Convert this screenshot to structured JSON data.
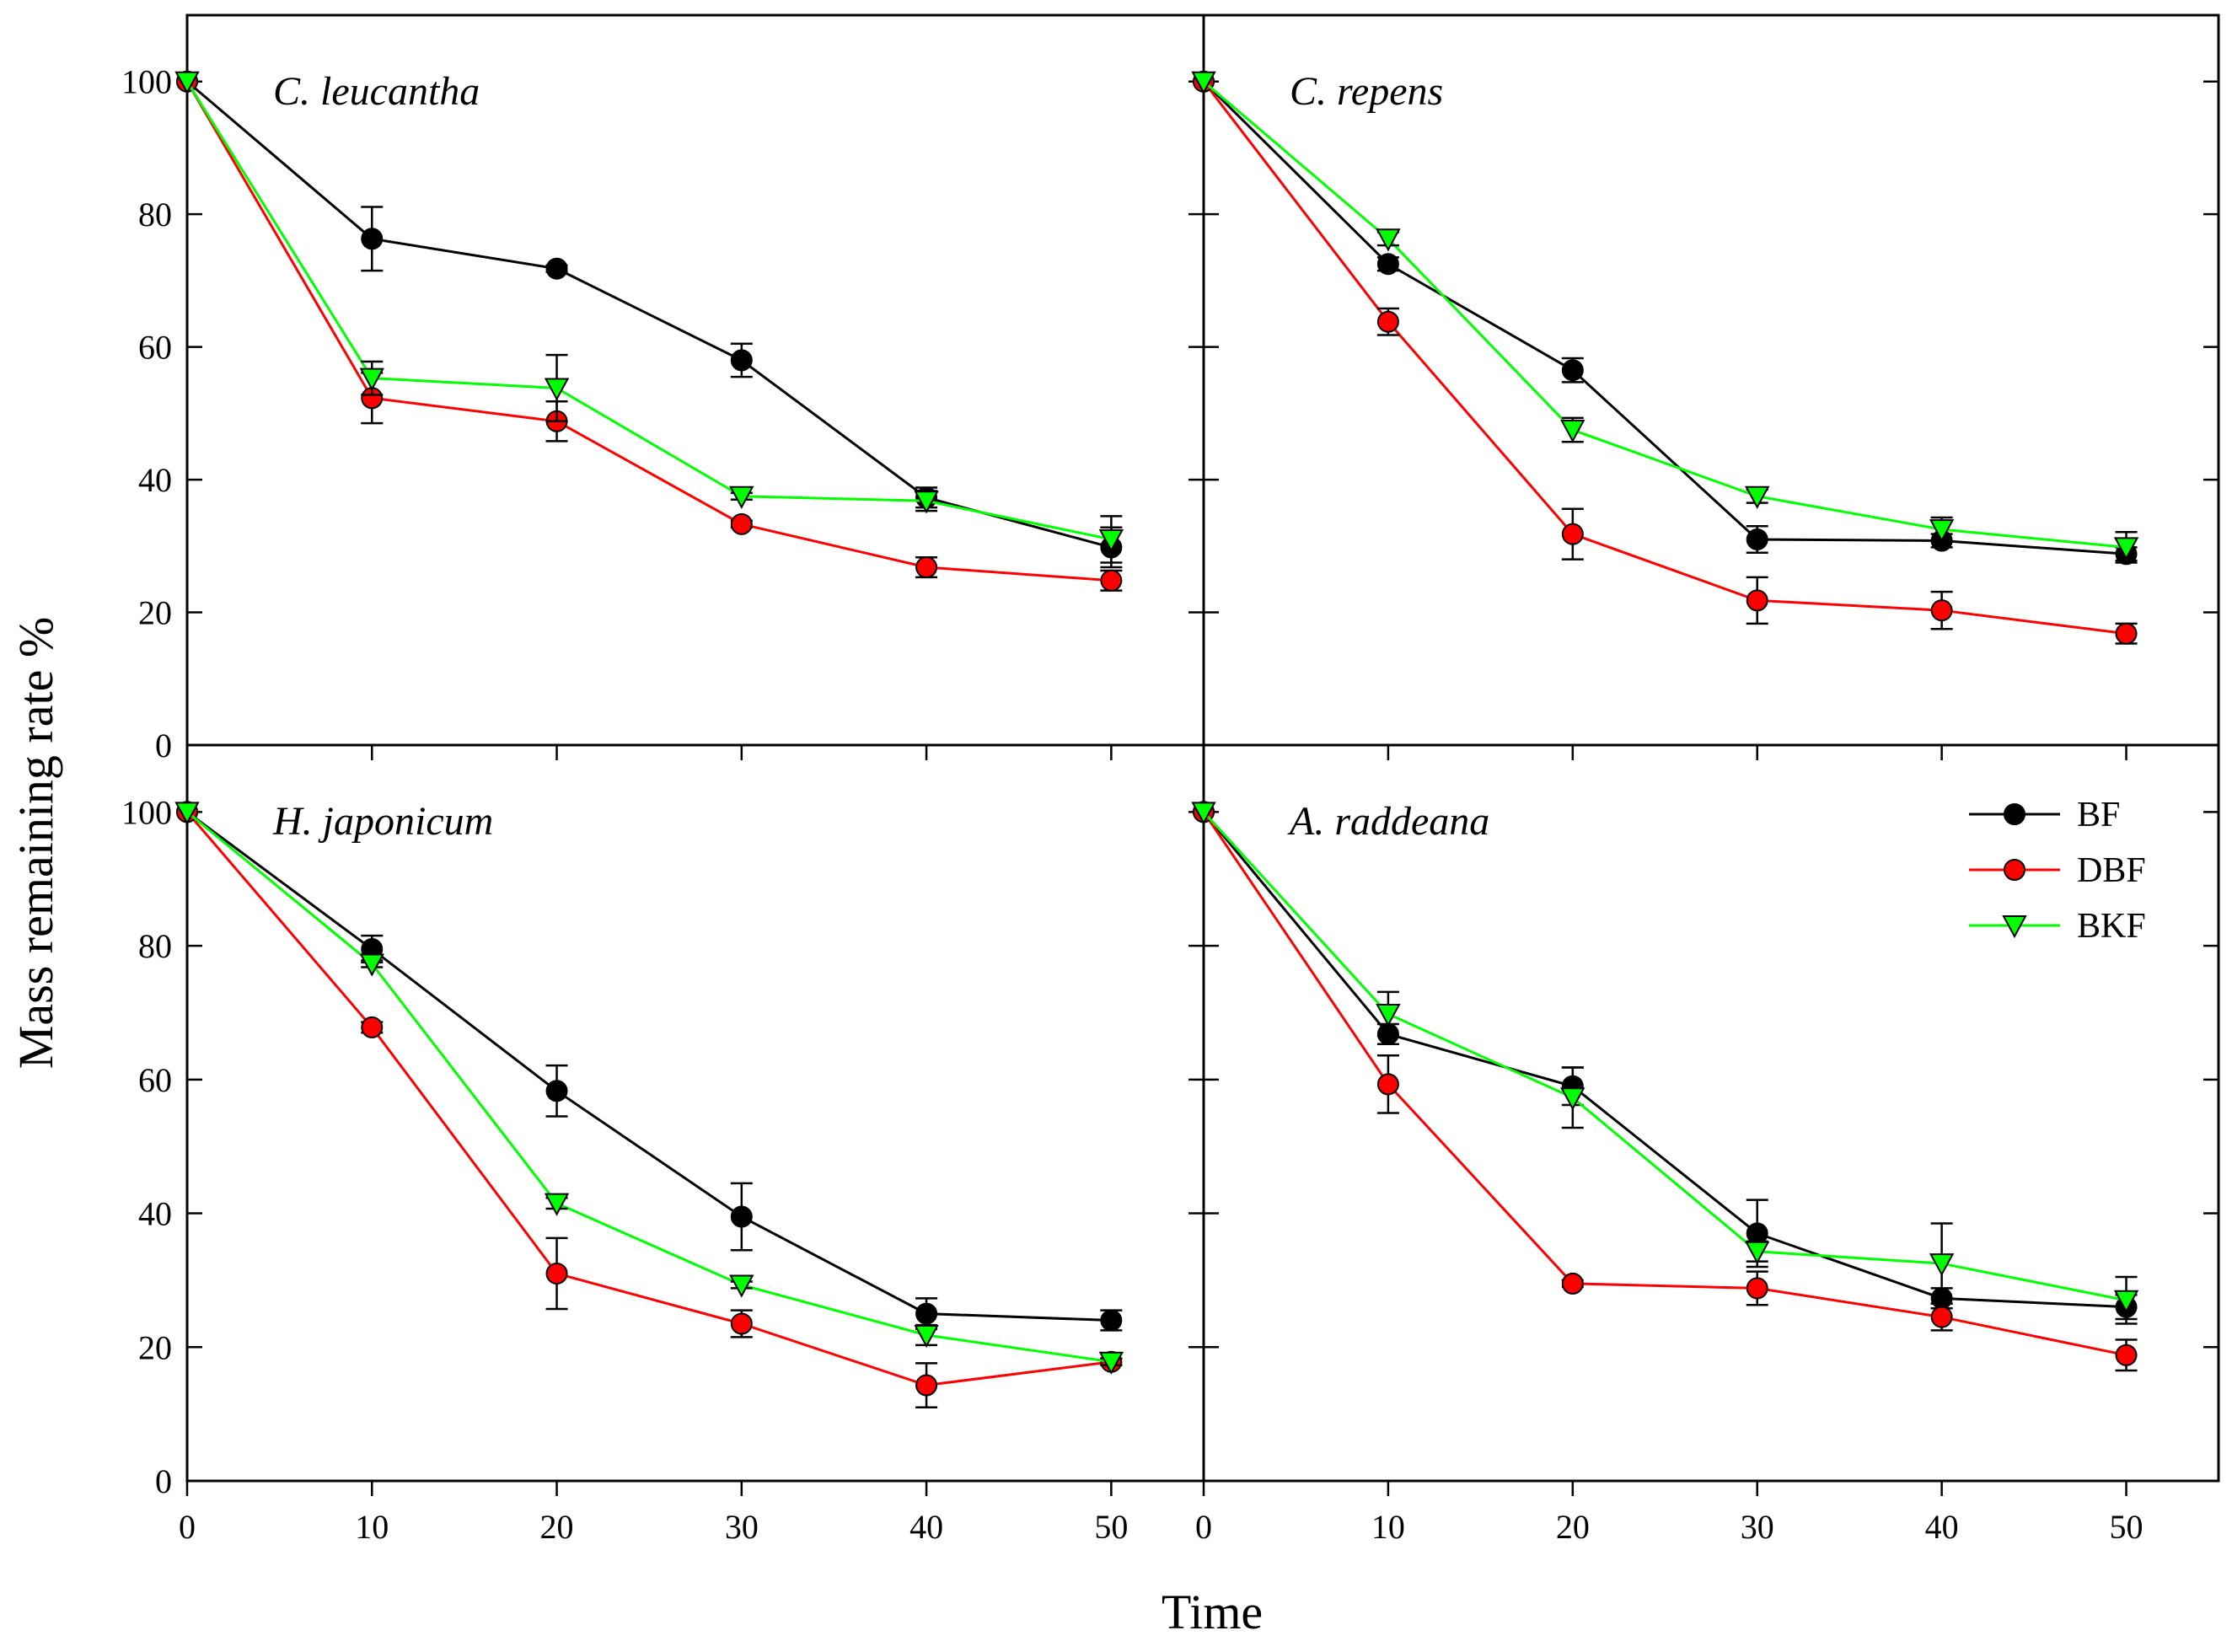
{
  "chart_data": {
    "type": "line",
    "xlabel": "Time",
    "ylabel": "Mass remaining rate %",
    "x_ticks": [
      0,
      10,
      20,
      30,
      40,
      50
    ],
    "y_ticks": [
      0,
      20,
      40,
      60,
      80,
      100
    ],
    "xlim": [
      0,
      55
    ],
    "ylim": [
      0,
      110
    ],
    "grid": false,
    "legend": {
      "placement": "top-right of lower-right panel",
      "entries": [
        {
          "name": "BF",
          "color": "#000000",
          "marker": "circle"
        },
        {
          "name": "DBF",
          "color": "#ff0000",
          "marker": "circle"
        },
        {
          "name": "BKF",
          "color": "#00ff00",
          "marker": "triangle-down"
        }
      ]
    },
    "x": [
      0,
      10,
      20,
      30,
      40,
      50
    ],
    "panels": [
      {
        "title": "C. leucantha",
        "series": [
          {
            "name": "BF",
            "values": [
              100,
              76.3,
              71.8,
              58,
              37.3,
              29.8
            ],
            "errors": [
              0,
              4.8,
              0.5,
              2.5,
              1.5,
              3
            ]
          },
          {
            "name": "DBF",
            "values": [
              100,
              52.3,
              48.8,
              33.3,
              26.8,
              24.8
            ],
            "errors": [
              0,
              3.8,
              3,
              0.5,
              1.5,
              1.5
            ]
          },
          {
            "name": "BKF",
            "values": [
              100,
              55.3,
              53.8,
              37.5,
              36.8,
              31
            ],
            "errors": [
              0,
              2.5,
              5,
              0.5,
              1.5,
              3.5
            ]
          }
        ]
      },
      {
        "title": "C. repens",
        "series": [
          {
            "name": "BF",
            "values": [
              100,
              72.5,
              56.5,
              31,
              30.8,
              28.8
            ],
            "errors": [
              0,
              1,
              1.8,
              2,
              1,
              1
            ]
          },
          {
            "name": "DBF",
            "values": [
              100,
              63.8,
              31.8,
              21.8,
              20.3,
              16.8
            ],
            "errors": [
              0,
              2,
              3.8,
              3.5,
              2.8,
              1.5
            ]
          },
          {
            "name": "BKF",
            "values": [
              100,
              76.3,
              47.5,
              37.5,
              32.5,
              29.8
            ],
            "errors": [
              0,
              1,
              1.8,
              1,
              1.8,
              2.3
            ]
          }
        ]
      },
      {
        "title": "H.  japonicum",
        "series": [
          {
            "name": "BF",
            "values": [
              100,
              79.5,
              58.3,
              39.5,
              25,
              24
            ],
            "errors": [
              0,
              2,
              3.8,
              5,
              2.3,
              1.5
            ]
          },
          {
            "name": "DBF",
            "values": [
              100,
              67.8,
              31,
              23.5,
              14.3,
              17.8
            ],
            "errors": [
              0,
              0.8,
              5.3,
              2,
              3.3,
              0.5
            ]
          },
          {
            "name": "BKF",
            "values": [
              100,
              77.3,
              41.5,
              29.3,
              21.8,
              17.8
            ],
            "errors": [
              0,
              0.5,
              0.8,
              0.5,
              1.5,
              0.5
            ]
          }
        ]
      },
      {
        "title": "A. raddeana",
        "series": [
          {
            "name": "BF",
            "values": [
              100,
              66.8,
              59,
              37,
              27.3,
              26
            ],
            "errors": [
              0,
              1.5,
              2.8,
              5,
              1.5,
              1.8
            ]
          },
          {
            "name": "DBF",
            "values": [
              100,
              59.3,
              29.5,
              28.8,
              24.5,
              18.8
            ],
            "errors": [
              0,
              4.3,
              0.5,
              2.5,
              2,
              2.3
            ]
          },
          {
            "name": "BKF",
            "values": [
              100,
              69.8,
              57.3,
              34.3,
              32.5,
              27
            ],
            "errors": [
              0,
              3.3,
              4.5,
              1.5,
              6,
              3.5
            ]
          }
        ]
      }
    ]
  }
}
